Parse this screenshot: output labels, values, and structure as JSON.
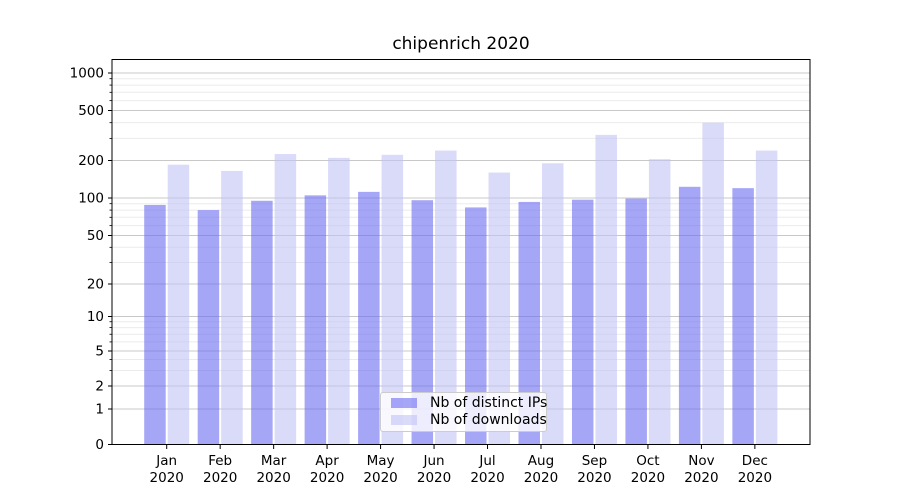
{
  "chart_data": {
    "type": "bar",
    "title": "chipenrich 2020",
    "categories": [
      "Jan 2020",
      "Feb 2020",
      "Mar 2020",
      "Apr 2020",
      "May 2020",
      "Jun 2020",
      "Jul 2020",
      "Aug 2020",
      "Sep 2020",
      "Oct 2020",
      "Nov 2020",
      "Dec 2020"
    ],
    "month_labels": [
      "Jan",
      "Feb",
      "Mar",
      "Apr",
      "May",
      "Jun",
      "Jul",
      "Aug",
      "Sep",
      "Oct",
      "Nov",
      "Dec"
    ],
    "year_label": "2020",
    "series": [
      {
        "name": "Nb of distinct IPs",
        "color": "rgba(107,107,242,0.6)",
        "values": [
          88,
          80,
          95,
          105,
          112,
          96,
          84,
          93,
          97,
          99,
          123,
          120
        ]
      },
      {
        "name": "Nb of downloads",
        "color": "rgba(193,193,245,0.6)",
        "values": [
          185,
          165,
          225,
          210,
          222,
          240,
          160,
          190,
          320,
          205,
          400,
          240
        ]
      }
    ],
    "yscale": "symlog",
    "y_tick_labels": [
      "0",
      "1",
      "2",
      "5",
      "10",
      "20",
      "50",
      "100",
      "200",
      "500",
      "1000"
    ],
    "y_major_ticks": [
      0,
      1,
      2,
      5,
      10,
      20,
      50,
      100,
      200,
      500,
      1000
    ],
    "y_minor_ticks": [
      3,
      4,
      6,
      7,
      8,
      9,
      30,
      40,
      60,
      70,
      80,
      90,
      300,
      400,
      600,
      700,
      800,
      900
    ],
    "ylim": [
      0,
      1300
    ],
    "grid": "horizontal, major and minor, light gray",
    "legend_position": "lower center",
    "colors": {
      "major_grid": "#c8c8c8",
      "minor_grid": "#ebebeb",
      "spine": "#000000",
      "text": "#000000"
    }
  }
}
